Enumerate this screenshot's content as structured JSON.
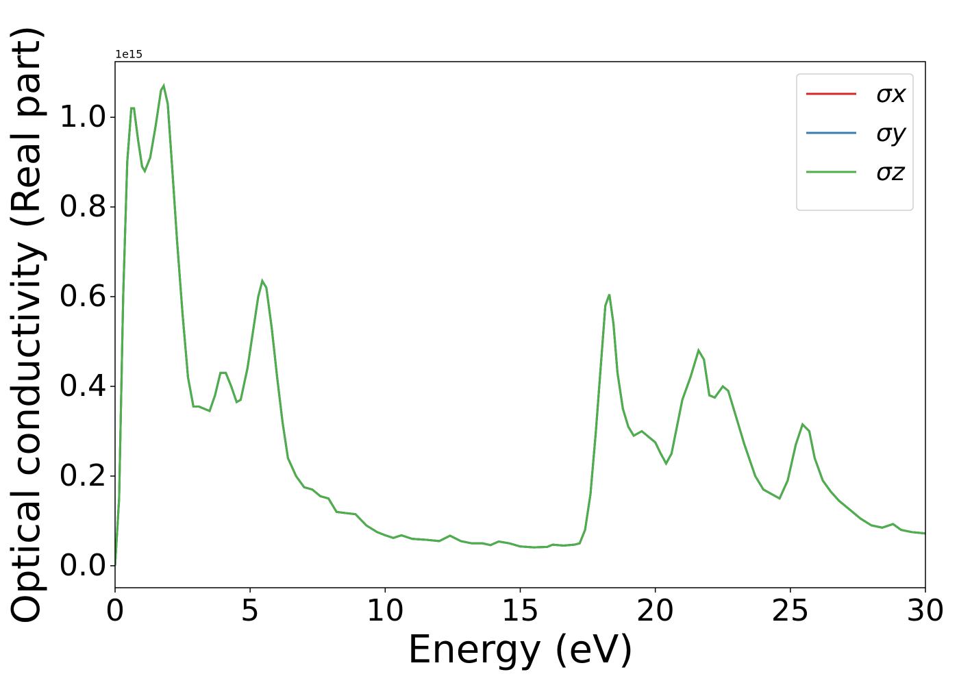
{
  "chart_data": {
    "type": "line",
    "xlabel": "Energy (eV)",
    "ylabel": "Optical conductivity (Real part)",
    "y_offset_label": "1e15",
    "x": [
      0,
      0.15,
      0.3,
      0.45,
      0.6,
      0.7,
      0.85,
      1.0,
      1.1,
      1.3,
      1.5,
      1.7,
      1.8,
      1.95,
      2.1,
      2.3,
      2.5,
      2.7,
      2.9,
      3.1,
      3.3,
      3.5,
      3.7,
      3.9,
      4.1,
      4.3,
      4.5,
      4.65,
      4.9,
      5.1,
      5.3,
      5.45,
      5.6,
      5.8,
      6.0,
      6.2,
      6.4,
      6.7,
      7.0,
      7.3,
      7.6,
      7.9,
      8.2,
      8.6,
      8.9,
      9.3,
      9.7,
      10.0,
      10.3,
      10.6,
      11.0,
      11.5,
      12.0,
      12.4,
      12.8,
      13.2,
      13.6,
      13.9,
      14.2,
      14.6,
      15.0,
      15.5,
      16.0,
      16.2,
      16.6,
      17.0,
      17.2,
      17.4,
      17.6,
      17.8,
      18.0,
      18.15,
      18.3,
      18.45,
      18.6,
      18.8,
      19.0,
      19.2,
      19.5,
      19.8,
      20.0,
      20.2,
      20.4,
      20.6,
      20.8,
      21.0,
      21.3,
      21.6,
      21.8,
      22.0,
      22.2,
      22.5,
      22.7,
      23.0,
      23.3,
      23.7,
      24.0,
      24.3,
      24.6,
      24.9,
      25.2,
      25.45,
      25.7,
      25.9,
      26.2,
      26.5,
      26.8,
      27.2,
      27.6,
      28.0,
      28.4,
      28.8,
      29.1,
      29.5,
      30.0
    ],
    "series": [
      {
        "name": "σx",
        "color": "#d62728",
        "values": [
          0.0,
          0.15,
          0.6,
          0.9,
          1.02,
          1.02,
          0.95,
          0.89,
          0.88,
          0.91,
          0.98,
          1.06,
          1.07,
          1.03,
          0.9,
          0.72,
          0.56,
          0.42,
          0.355,
          0.355,
          0.35,
          0.345,
          0.38,
          0.43,
          0.43,
          0.4,
          0.365,
          0.37,
          0.44,
          0.52,
          0.6,
          0.635,
          0.62,
          0.53,
          0.42,
          0.32,
          0.24,
          0.2,
          0.175,
          0.17,
          0.155,
          0.15,
          0.12,
          0.117,
          0.115,
          0.09,
          0.075,
          0.068,
          0.062,
          0.068,
          0.06,
          0.058,
          0.055,
          0.067,
          0.055,
          0.05,
          0.05,
          0.046,
          0.054,
          0.05,
          0.043,
          0.041,
          0.042,
          0.047,
          0.045,
          0.047,
          0.05,
          0.08,
          0.16,
          0.3,
          0.46,
          0.58,
          0.605,
          0.54,
          0.43,
          0.35,
          0.31,
          0.29,
          0.3,
          0.285,
          0.275,
          0.25,
          0.228,
          0.25,
          0.31,
          0.37,
          0.42,
          0.48,
          0.46,
          0.38,
          0.375,
          0.4,
          0.39,
          0.33,
          0.27,
          0.2,
          0.17,
          0.16,
          0.15,
          0.19,
          0.27,
          0.315,
          0.3,
          0.24,
          0.19,
          0.165,
          0.145,
          0.125,
          0.105,
          0.09,
          0.085,
          0.093,
          0.08,
          0.075,
          0.072
        ]
      },
      {
        "name": "σy",
        "color": "#3a7db5",
        "values": [
          0.0,
          0.15,
          0.6,
          0.9,
          1.02,
          1.02,
          0.95,
          0.89,
          0.88,
          0.91,
          0.98,
          1.06,
          1.07,
          1.03,
          0.9,
          0.72,
          0.56,
          0.42,
          0.355,
          0.355,
          0.35,
          0.345,
          0.38,
          0.43,
          0.43,
          0.4,
          0.365,
          0.37,
          0.44,
          0.52,
          0.6,
          0.635,
          0.62,
          0.53,
          0.42,
          0.32,
          0.24,
          0.2,
          0.175,
          0.17,
          0.155,
          0.15,
          0.12,
          0.117,
          0.115,
          0.09,
          0.075,
          0.068,
          0.062,
          0.068,
          0.06,
          0.058,
          0.055,
          0.067,
          0.055,
          0.05,
          0.05,
          0.046,
          0.054,
          0.05,
          0.043,
          0.041,
          0.042,
          0.047,
          0.045,
          0.047,
          0.05,
          0.08,
          0.16,
          0.3,
          0.46,
          0.58,
          0.605,
          0.54,
          0.43,
          0.35,
          0.31,
          0.29,
          0.3,
          0.285,
          0.275,
          0.25,
          0.228,
          0.25,
          0.31,
          0.37,
          0.42,
          0.48,
          0.46,
          0.38,
          0.375,
          0.4,
          0.39,
          0.33,
          0.27,
          0.2,
          0.17,
          0.16,
          0.15,
          0.19,
          0.27,
          0.315,
          0.3,
          0.24,
          0.19,
          0.165,
          0.145,
          0.125,
          0.105,
          0.09,
          0.085,
          0.093,
          0.08,
          0.075,
          0.072
        ]
      },
      {
        "name": "σz",
        "color": "#4daf4a",
        "values": [
          0.0,
          0.15,
          0.6,
          0.9,
          1.02,
          1.02,
          0.95,
          0.89,
          0.88,
          0.91,
          0.98,
          1.06,
          1.07,
          1.03,
          0.9,
          0.72,
          0.56,
          0.42,
          0.355,
          0.355,
          0.35,
          0.345,
          0.38,
          0.43,
          0.43,
          0.4,
          0.365,
          0.37,
          0.44,
          0.52,
          0.6,
          0.635,
          0.62,
          0.53,
          0.42,
          0.32,
          0.24,
          0.2,
          0.175,
          0.17,
          0.155,
          0.15,
          0.12,
          0.117,
          0.115,
          0.09,
          0.075,
          0.068,
          0.062,
          0.068,
          0.06,
          0.058,
          0.055,
          0.067,
          0.055,
          0.05,
          0.05,
          0.046,
          0.054,
          0.05,
          0.043,
          0.041,
          0.042,
          0.047,
          0.045,
          0.047,
          0.05,
          0.08,
          0.16,
          0.3,
          0.46,
          0.58,
          0.605,
          0.54,
          0.43,
          0.35,
          0.31,
          0.29,
          0.3,
          0.285,
          0.275,
          0.25,
          0.228,
          0.25,
          0.31,
          0.37,
          0.42,
          0.48,
          0.46,
          0.38,
          0.375,
          0.4,
          0.39,
          0.33,
          0.27,
          0.2,
          0.17,
          0.16,
          0.15,
          0.19,
          0.27,
          0.315,
          0.3,
          0.24,
          0.19,
          0.165,
          0.145,
          0.125,
          0.105,
          0.09,
          0.085,
          0.093,
          0.08,
          0.075,
          0.072
        ]
      }
    ],
    "xlim": [
      0,
      30
    ],
    "xticks": [
      0,
      5,
      10,
      15,
      20,
      25,
      30
    ],
    "ylim": [
      -0.049,
      1.124
    ],
    "yticks": [
      {
        "value": 0,
        "label": "0.0"
      },
      0.2,
      0.4,
      0.6,
      0.8,
      {
        "value": 1,
        "label": "1.0"
      }
    ],
    "grid": false,
    "legend": "upper right"
  }
}
